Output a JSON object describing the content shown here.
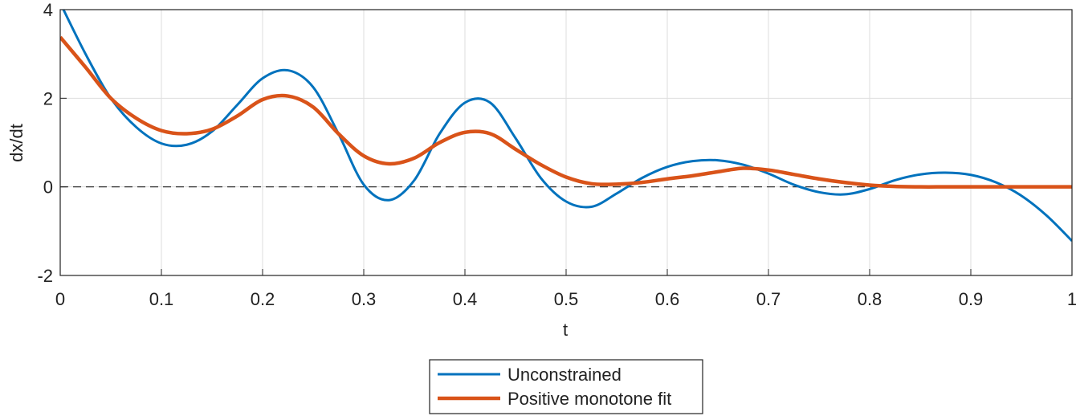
{
  "chart_data": {
    "type": "line",
    "xlabel": "t",
    "ylabel": "dx/dt",
    "x": [
      0,
      0.025,
      0.05,
      0.075,
      0.1,
      0.125,
      0.15,
      0.175,
      0.2,
      0.225,
      0.25,
      0.275,
      0.3,
      0.325,
      0.35,
      0.375,
      0.4,
      0.425,
      0.45,
      0.475,
      0.5,
      0.525,
      0.55,
      0.575,
      0.6,
      0.625,
      0.65,
      0.675,
      0.7,
      0.725,
      0.75,
      0.775,
      0.8,
      0.825,
      0.85,
      0.875,
      0.9,
      0.925,
      0.95,
      0.975,
      1
    ],
    "series": [
      {
        "name": "Unconstrained",
        "color": "#0072bd",
        "width": 3,
        "values": [
          4.15,
          3.0,
          2.0,
          1.35,
          0.98,
          0.95,
          1.25,
          1.85,
          2.45,
          2.63,
          2.25,
          1.2,
          0.05,
          -0.3,
          0.15,
          1.2,
          1.9,
          1.9,
          1.1,
          0.2,
          -0.33,
          -0.45,
          -0.15,
          0.2,
          0.45,
          0.58,
          0.6,
          0.5,
          0.3,
          0.05,
          -0.12,
          -0.17,
          -0.05,
          0.15,
          0.28,
          0.32,
          0.27,
          0.1,
          -0.2,
          -0.65,
          -1.22
        ]
      },
      {
        "name": "Positive monotone fit",
        "color": "#d95319",
        "width": 4.5,
        "values": [
          3.38,
          2.7,
          2.0,
          1.55,
          1.27,
          1.2,
          1.3,
          1.6,
          1.97,
          2.05,
          1.8,
          1.2,
          0.7,
          0.52,
          0.65,
          1.0,
          1.23,
          1.2,
          0.85,
          0.5,
          0.22,
          0.07,
          0.06,
          0.1,
          0.18,
          0.25,
          0.34,
          0.42,
          0.38,
          0.28,
          0.18,
          0.1,
          0.04,
          0.01,
          0,
          0,
          0,
          0,
          0,
          0,
          0
        ]
      }
    ],
    "reference_line": 0,
    "xlim": [
      0,
      1
    ],
    "xticks": [
      0,
      0.1,
      0.2,
      0.3,
      0.4,
      0.5,
      0.6,
      0.7,
      0.8,
      0.9,
      1
    ],
    "ylim": [
      -2,
      4
    ],
    "yticks": [
      -2,
      0,
      2,
      4
    ],
    "grid": true,
    "legend": "south-outside"
  }
}
